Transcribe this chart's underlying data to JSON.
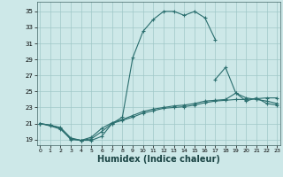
{
  "bg_color": "#cde8e8",
  "grid_color": "#a0c8c8",
  "line_color": "#2a6e6e",
  "xlabel": "Humidex (Indice chaleur)",
  "xlabel_fontsize": 7,
  "ytick_labels": [
    "19",
    "21",
    "23",
    "25",
    "27",
    "29",
    "31",
    "33",
    "35"
  ],
  "ytick_vals": [
    19,
    21,
    23,
    25,
    27,
    29,
    31,
    33,
    35
  ],
  "xtick_vals": [
    0,
    1,
    2,
    3,
    4,
    5,
    6,
    7,
    8,
    9,
    10,
    11,
    12,
    13,
    14,
    15,
    16,
    17,
    18,
    19,
    20,
    21,
    22,
    23
  ],
  "xlim": [
    -0.3,
    23.3
  ],
  "ylim": [
    18.3,
    36.2
  ],
  "series": [
    {
      "x": [
        0,
        1,
        2,
        3,
        4,
        5,
        6,
        7,
        8,
        9,
        10,
        11,
        12,
        13,
        14,
        15,
        16,
        17
      ],
      "y": [
        21.0,
        20.8,
        20.5,
        19.2,
        18.9,
        18.9,
        19.4,
        21.0,
        21.8,
        29.2,
        32.5,
        34.0,
        35.0,
        35.0,
        34.5,
        35.0,
        34.2,
        31.5
      ]
    },
    {
      "x": [
        0,
        1,
        2,
        3,
        4,
        5,
        6,
        7,
        8,
        9,
        10,
        11,
        12,
        13,
        14,
        15,
        16,
        17,
        18,
        19,
        20,
        21,
        22,
        23
      ],
      "y": [
        21.0,
        20.8,
        20.4,
        19.0,
        18.9,
        19.3,
        20.4,
        21.1,
        21.5,
        22.0,
        22.5,
        22.8,
        23.0,
        23.2,
        23.3,
        23.5,
        23.8,
        23.9,
        24.0,
        24.8,
        23.8,
        24.2,
        23.5,
        23.3
      ]
    },
    {
      "x": [
        0,
        1,
        2,
        3,
        4,
        5,
        6,
        7,
        8,
        9,
        10,
        11,
        12,
        13,
        14,
        15,
        16,
        17,
        18,
        19,
        20,
        21,
        22,
        23
      ],
      "y": [
        21.0,
        20.7,
        20.3,
        19.1,
        18.9,
        19.1,
        20.0,
        21.0,
        21.4,
        21.8,
        22.3,
        22.6,
        22.9,
        23.0,
        23.1,
        23.3,
        23.6,
        23.8,
        23.9,
        24.0,
        24.0,
        24.1,
        24.2,
        24.2
      ]
    },
    {
      "x": [
        17,
        18,
        19,
        20,
        21,
        22,
        23
      ],
      "y": [
        26.5,
        28.0,
        24.8,
        24.2,
        24.0,
        23.8,
        23.5
      ]
    }
  ]
}
